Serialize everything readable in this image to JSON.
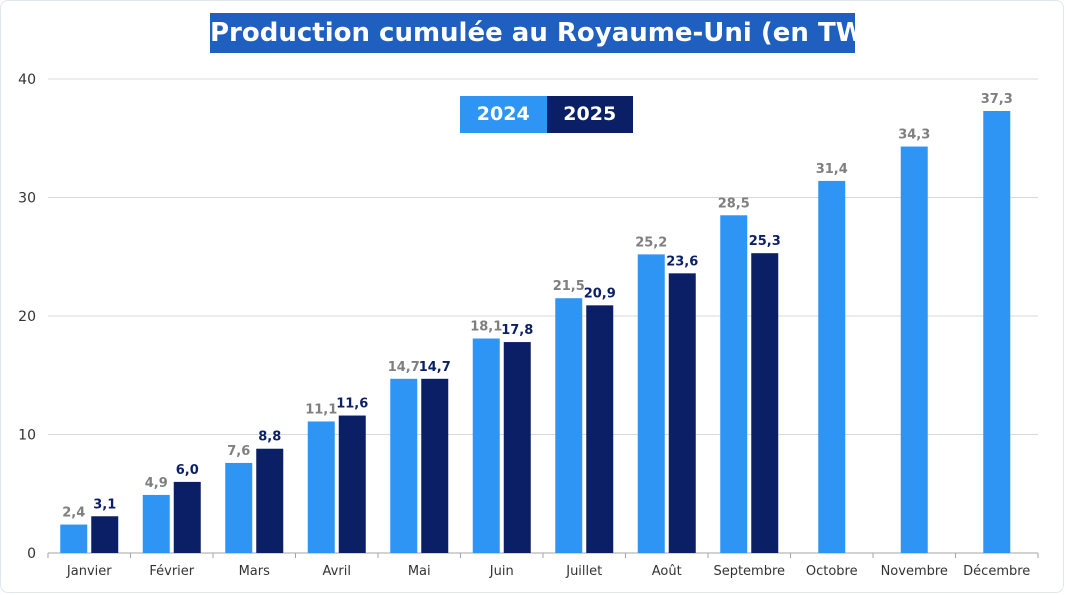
{
  "chart_data": {
    "type": "bar",
    "title": "Production cumulée au Royaume-Uni (en TWh)",
    "categories": [
      "Janvier",
      "Février",
      "Mars",
      "Avril",
      "Mai",
      "Juin",
      "Juillet",
      "Août",
      "Septembre",
      "Octobre",
      "Novembre",
      "Décembre"
    ],
    "series": [
      {
        "name": "2024",
        "color": "#2f95f5",
        "label_color": "#7f7f7f",
        "values": [
          2.4,
          4.9,
          7.6,
          11.1,
          14.7,
          18.1,
          21.5,
          25.2,
          28.5,
          31.4,
          34.3,
          37.3
        ],
        "labels": [
          "2,4",
          "4,9",
          "7,6",
          "11,1",
          "14,7",
          "18,1",
          "21,5",
          "25,2",
          "28,5",
          "31,4",
          "34,3",
          "37,3"
        ]
      },
      {
        "name": "2025",
        "color": "#0b1f66",
        "label_color": "#0b1f66",
        "values": [
          3.1,
          6.0,
          8.8,
          11.6,
          14.7,
          17.8,
          20.9,
          23.6,
          25.3,
          null,
          null,
          null
        ],
        "labels": [
          "3,1",
          "6,0",
          "8,8",
          "11,6",
          "14,7",
          "17,8",
          "20,9",
          "23,6",
          "25,3",
          null,
          null,
          null
        ]
      }
    ],
    "ylim": [
      0,
      40
    ],
    "yticks": [
      0,
      10,
      20,
      30,
      40
    ],
    "grid": true,
    "legend": "top-center",
    "xlabel": "",
    "ylabel": ""
  }
}
